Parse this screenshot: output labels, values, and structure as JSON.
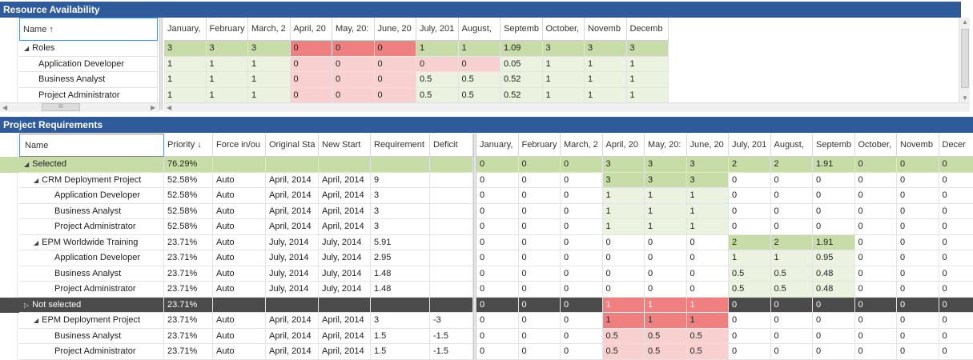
{
  "resource_availability": {
    "title": "Resource Availability",
    "name_header": "Name ↑",
    "months": [
      "January,",
      "February",
      "March, 2",
      "April, 20",
      "May, 20:",
      "June, 20",
      "July, 201",
      "August,",
      "Septemb",
      "October,",
      "Novemb",
      "Decemb"
    ],
    "rows": [
      {
        "name": "Roles",
        "expander": "◢",
        "indent": 0,
        "values": [
          "3",
          "3",
          "3",
          "0",
          "0",
          "0",
          "1",
          "1",
          "1.09",
          "3",
          "3",
          "3"
        ]
      },
      {
        "name": "Application Developer",
        "indent": 1,
        "values": [
          "1",
          "1",
          "1",
          "0",
          "0",
          "0",
          "0",
          "0",
          "0.05",
          "1",
          "1",
          "1"
        ]
      },
      {
        "name": "Business Analyst",
        "indent": 1,
        "values": [
          "1",
          "1",
          "1",
          "0",
          "0",
          "0",
          "0.5",
          "0.5",
          "0.52",
          "1",
          "1",
          "1"
        ]
      },
      {
        "name": "Project Administrator",
        "indent": 1,
        "values": [
          "1",
          "1",
          "1",
          "0",
          "0",
          "0",
          "0.5",
          "0.5",
          "0.52",
          "1",
          "1",
          "1"
        ]
      }
    ],
    "hscroll_thumb": "III"
  },
  "project_requirements": {
    "title": "Project Requirements",
    "headers": [
      "Name",
      "Priority ↓",
      "Force in/ou",
      "Original Sta",
      "New Start",
      "Requirement",
      "Deficit"
    ],
    "months": [
      "January,",
      "February",
      "March, 2",
      "April, 20",
      "May, 20:",
      "June, 20",
      "July, 201",
      "August,",
      "Septemb",
      "October,",
      "Novemb",
      "Decer"
    ],
    "rows": [
      {
        "name": "Selected",
        "level": 0,
        "expander": "◢",
        "kind": "selected",
        "priority": "76.29%",
        "force": "",
        "orig": "",
        "new": "",
        "req": "",
        "deficit": "",
        "values": [
          "0",
          "0",
          "0",
          "3",
          "3",
          "3",
          "2",
          "2",
          "1.91",
          "0",
          "0",
          "0"
        ]
      },
      {
        "name": "CRM Deployment Project",
        "level": 1,
        "expander": "◢",
        "priority": "52.58%",
        "force": "Auto",
        "orig": "April, 2014",
        "new": "April, 2014",
        "req": "9",
        "deficit": "",
        "values": [
          "0",
          "0",
          "0",
          "3",
          "3",
          "3",
          "0",
          "0",
          "0",
          "0",
          "0",
          "0"
        ]
      },
      {
        "name": "Application Developer",
        "level": 2,
        "priority": "52.58%",
        "force": "Auto",
        "orig": "April, 2014",
        "new": "April, 2014",
        "req": "3",
        "deficit": "",
        "values": [
          "0",
          "0",
          "0",
          "1",
          "1",
          "1",
          "0",
          "0",
          "0",
          "0",
          "0",
          "0"
        ]
      },
      {
        "name": "Business Analyst",
        "level": 2,
        "priority": "52.58%",
        "force": "Auto",
        "orig": "April, 2014",
        "new": "April, 2014",
        "req": "3",
        "deficit": "",
        "values": [
          "0",
          "0",
          "0",
          "1",
          "1",
          "1",
          "0",
          "0",
          "0",
          "0",
          "0",
          "0"
        ]
      },
      {
        "name": "Project Administrator",
        "level": 2,
        "priority": "52.58%",
        "force": "Auto",
        "orig": "April, 2014",
        "new": "April, 2014",
        "req": "3",
        "deficit": "",
        "values": [
          "0",
          "0",
          "0",
          "1",
          "1",
          "1",
          "0",
          "0",
          "0",
          "0",
          "0",
          "0"
        ]
      },
      {
        "name": "EPM Worldwide Training",
        "level": 1,
        "expander": "◢",
        "priority": "23.71%",
        "force": "Auto",
        "orig": "July, 2014",
        "new": "July, 2014",
        "req": "5.91",
        "deficit": "",
        "values": [
          "0",
          "0",
          "0",
          "0",
          "0",
          "0",
          "2",
          "2",
          "1.91",
          "0",
          "0",
          "0"
        ]
      },
      {
        "name": "Application Developer",
        "level": 2,
        "priority": "23.71%",
        "force": "Auto",
        "orig": "July, 2014",
        "new": "July, 2014",
        "req": "2.95",
        "deficit": "",
        "values": [
          "0",
          "0",
          "0",
          "0",
          "0",
          "0",
          "1",
          "1",
          "0.95",
          "0",
          "0",
          "0"
        ]
      },
      {
        "name": "Business Analyst",
        "level": 2,
        "priority": "23.71%",
        "force": "Auto",
        "orig": "July, 2014",
        "new": "July, 2014",
        "req": "1.48",
        "deficit": "",
        "values": [
          "0",
          "0",
          "0",
          "0",
          "0",
          "0",
          "0.5",
          "0.5",
          "0.48",
          "0",
          "0",
          "0"
        ]
      },
      {
        "name": "Project Administrator",
        "level": 2,
        "priority": "23.71%",
        "force": "Auto",
        "orig": "July, 2014",
        "new": "July, 2014",
        "req": "1.48",
        "deficit": "",
        "values": [
          "0",
          "0",
          "0",
          "0",
          "0",
          "0",
          "0.5",
          "0.5",
          "0.48",
          "0",
          "0",
          "0"
        ]
      },
      {
        "name": "Not selected",
        "level": 0,
        "expander": "▷",
        "kind": "notselected",
        "priority": "23.71%",
        "force": "",
        "orig": "",
        "new": "",
        "req": "",
        "deficit": "",
        "values": [
          "0",
          "0",
          "0",
          "1",
          "1",
          "1",
          "0",
          "0",
          "0",
          "0",
          "0",
          "0"
        ]
      },
      {
        "name": "EPM Deployment Project",
        "level": 1,
        "expander": "◢",
        "priority": "23.71%",
        "force": "Auto",
        "orig": "April, 2014",
        "new": "April, 2014",
        "req": "3",
        "deficit": "-3",
        "values": [
          "0",
          "0",
          "0",
          "1",
          "1",
          "1",
          "0",
          "0",
          "0",
          "0",
          "0",
          "0"
        ]
      },
      {
        "name": "Business Analyst",
        "level": 2,
        "priority": "23.71%",
        "force": "Auto",
        "orig": "April, 2014",
        "new": "April, 2014",
        "req": "1.5",
        "deficit": "-1.5",
        "values": [
          "0",
          "0",
          "0",
          "0.5",
          "0.5",
          "0.5",
          "0",
          "0",
          "0",
          "0",
          "0",
          "0"
        ]
      },
      {
        "name": "Project Administrator",
        "level": 2,
        "priority": "23.71%",
        "force": "Auto",
        "orig": "April, 2014",
        "new": "April, 2014",
        "req": "1.5",
        "deficit": "-1.5",
        "values": [
          "0",
          "0",
          "0",
          "0.5",
          "0.5",
          "0.5",
          "0",
          "0",
          "0",
          "0",
          "0",
          "0"
        ]
      }
    ]
  },
  "colors": {
    "header_bar": "#2f5b9a",
    "available": "#c8dca8",
    "available_light": "#ebf2df",
    "shortage": "#f08080",
    "shortage_light": "#f8d0d0",
    "not_selected_row": "#4b4b4b"
  }
}
